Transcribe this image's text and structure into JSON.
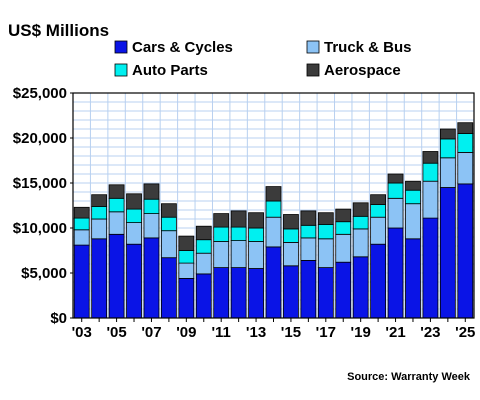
{
  "chart_data": {
    "type": "bar",
    "stacked": true,
    "ylabel": "US$ Millions",
    "ylim": [
      0,
      25000
    ],
    "yticks": [
      "$0",
      "$5,000",
      "$10,000",
      "$15,000",
      "$20,000",
      "$25,000"
    ],
    "ytick_values": [
      0,
      5000,
      10000,
      15000,
      20000,
      25000
    ],
    "grid": true,
    "legend_position": "top",
    "source": "Source: Warranty Week",
    "categories": [
      "2003",
      "2004",
      "2005",
      "2006",
      "2007",
      "2008",
      "2009",
      "2010",
      "2011",
      "2012",
      "2013",
      "2014",
      "2015",
      "2016",
      "2017",
      "2018",
      "2019",
      "2020",
      "2021",
      "2022",
      "2023",
      "2024",
      "2025"
    ],
    "xtick_labels": [
      "'03",
      "",
      "'05",
      "",
      "'07",
      "",
      "'09",
      "",
      "'11",
      "",
      "'13",
      "",
      "'15",
      "",
      "'17",
      "",
      "'19",
      "",
      "'21",
      "",
      "'23",
      "",
      "'25"
    ],
    "series": [
      {
        "name": "Cars & Cycles",
        "color": "#0a14e6",
        "values": [
          8100,
          8800,
          9300,
          8200,
          8900,
          6700,
          4400,
          4900,
          5600,
          5600,
          5500,
          7900,
          5800,
          6400,
          5600,
          6200,
          6800,
          8200,
          10000,
          8800,
          11100,
          14500,
          14900
        ]
      },
      {
        "name": "Truck & Bus",
        "color": "#8cc3f5",
        "values": [
          1700,
          2200,
          2500,
          2400,
          2700,
          3000,
          1700,
          2300,
          2900,
          3000,
          3000,
          3300,
          2600,
          2500,
          3200,
          3100,
          3100,
          3000,
          3300,
          3900,
          4100,
          3300,
          3500
        ]
      },
      {
        "name": "Auto Parts",
        "color": "#00f0f0",
        "values": [
          1300,
          1400,
          1500,
          1500,
          1600,
          1500,
          1400,
          1500,
          1600,
          1500,
          1500,
          1800,
          1500,
          1400,
          1600,
          1400,
          1400,
          1400,
          1700,
          1500,
          2000,
          2100,
          2100
        ]
      },
      {
        "name": "Aerospace",
        "color": "#3b3b3b",
        "values": [
          1200,
          1300,
          1500,
          1700,
          1700,
          1500,
          1600,
          1500,
          1500,
          1800,
          1700,
          1600,
          1600,
          1600,
          1300,
          1400,
          1500,
          1100,
          1000,
          1000,
          1300,
          1100,
          1200
        ]
      }
    ]
  }
}
